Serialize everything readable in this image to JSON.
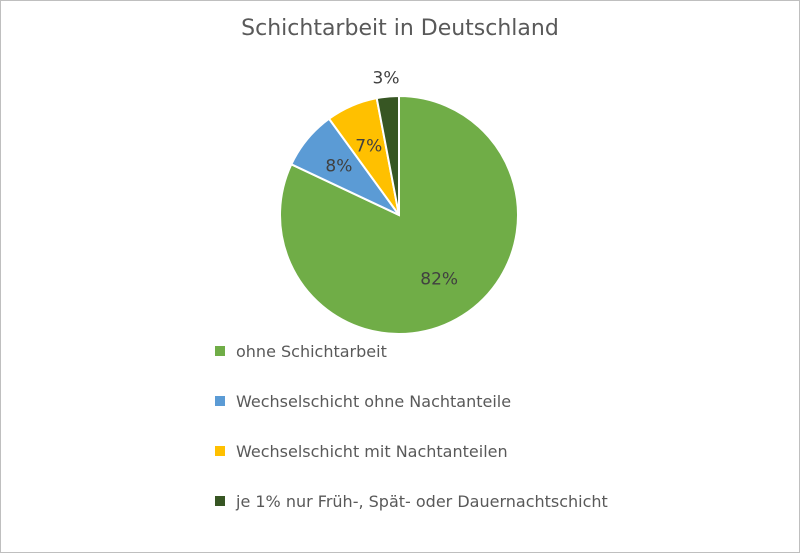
{
  "chart_data": {
    "type": "pie",
    "title": "Schichtarbeit in Deutschland",
    "categories": [
      "ohne Schichtarbeit",
      "Wechselschicht ohne Nachtanteile",
      "Wechselschicht mit Nachtanteilen",
      "je 1% nur Früh-, Spät- oder Dauernachtschicht"
    ],
    "values": [
      82,
      8,
      7,
      3
    ],
    "labels": [
      "82%",
      "8%",
      "7%",
      "3%"
    ],
    "colors": [
      "#70ad47",
      "#5b9bd5",
      "#ffc000",
      "#375623"
    ],
    "legend_position": "bottom"
  }
}
